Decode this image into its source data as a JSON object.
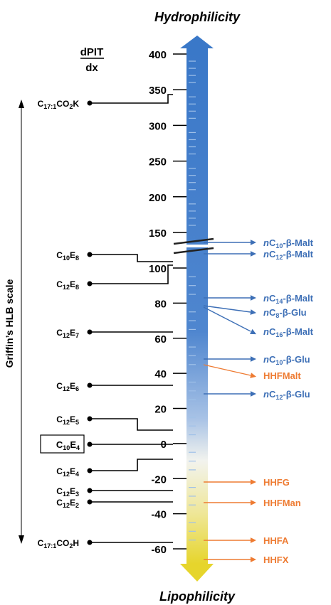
{
  "title_top": "Hydrophilicity",
  "title_bottom": "Lipophilicity",
  "axis_label_num": "dPIT",
  "axis_label_den": "dx",
  "hlb_label": "Griffin’s HLB scale",
  "colors": {
    "blue_label": "#3d6fb6",
    "orange_label": "#ee7b32",
    "bar_top": "#3a78c8",
    "bar_mid": "#7fa6d6",
    "bar_white": "#f2f3ee",
    "bar_yellow": "#e8d834"
  },
  "ticks": [
    {
      "v": 400,
      "label": "400"
    },
    {
      "v": 350,
      "label": "350"
    },
    {
      "v": 300,
      "label": "300"
    },
    {
      "v": 250,
      "label": "250"
    },
    {
      "v": 200,
      "label": "200"
    },
    {
      "v": 150,
      "label": "150"
    },
    {
      "v": 100,
      "label": "100"
    },
    {
      "v": 80,
      "label": "80"
    },
    {
      "v": 60,
      "label": "60"
    },
    {
      "v": 40,
      "label": "40"
    },
    {
      "v": 20,
      "label": "20"
    },
    {
      "v": 0,
      "label": "0"
    },
    {
      "v": -20,
      "label": "-20"
    },
    {
      "v": -40,
      "label": "-40"
    },
    {
      "v": -60,
      "label": "-60"
    }
  ],
  "left_labels": [
    {
      "main": "C",
      "sub": "17:1",
      "rest": "CO",
      "sub2": "2",
      "rest2": "K",
      "value": 340
    },
    {
      "main": "C",
      "sub": "10",
      "rest": "E",
      "sub2": "8",
      "rest2": "",
      "value": 104
    },
    {
      "main": "C",
      "sub": "12",
      "rest": "E",
      "sub2": "8",
      "rest2": "",
      "value": 102
    },
    {
      "main": "C",
      "sub": "12",
      "rest": "E",
      "sub2": "7",
      "rest2": "",
      "value": 63
    },
    {
      "main": "C",
      "sub": "12",
      "rest": "E",
      "sub2": "6",
      "rest2": "",
      "value": 37
    },
    {
      "main": "C",
      "sub": "12",
      "rest": "E",
      "sub2": "5",
      "rest2": "",
      "value": 8
    },
    {
      "main": "C",
      "sub": "10",
      "rest": "E",
      "sub2": "4",
      "rest2": "",
      "value": 0
    },
    {
      "main": "C",
      "sub": "12",
      "rest": "E",
      "sub2": "4",
      "rest2": "",
      "value": -8
    },
    {
      "main": "C",
      "sub": "12",
      "rest": "E",
      "sub2": "3",
      "rest2": "",
      "value": -27
    },
    {
      "main": "C",
      "sub": "12",
      "rest": "E",
      "sub2": "2",
      "rest2": "",
      "value": -31
    },
    {
      "main": "C",
      "sub": "17:1",
      "rest": "CO",
      "sub2": "2",
      "rest2": "H",
      "value": -56
    }
  ],
  "right_labels": [
    {
      "prefix": "n",
      "main": "C",
      "sub": "10",
      "rest": "-β-Malt",
      "group": "blue"
    },
    {
      "prefix": "n",
      "main": "C",
      "sub": "12",
      "rest": "-β-Malt",
      "group": "blue"
    },
    {
      "prefix": "n",
      "main": "C",
      "sub": "14",
      "rest": "-β-Malt",
      "group": "blue"
    },
    {
      "prefix": "n",
      "main": "C",
      "sub": "8",
      "rest": "-β-Glu",
      "group": "blue"
    },
    {
      "prefix": "n",
      "main": "C",
      "sub": "16",
      "rest": "-β-Malt",
      "group": "blue"
    },
    {
      "prefix": "n",
      "main": "C",
      "sub": "10",
      "rest": "-β-Glu",
      "group": "blue"
    },
    {
      "prefix": "",
      "main": "HHFMalt",
      "sub": "",
      "rest": "",
      "group": "orange"
    },
    {
      "prefix": "n",
      "main": "C",
      "sub": "12",
      "rest": "-β-Glu",
      "group": "blue"
    },
    {
      "prefix": "",
      "main": "HHFG",
      "sub": "",
      "rest": "",
      "group": "orange"
    },
    {
      "prefix": "",
      "main": "HHFMan",
      "sub": "",
      "rest": "",
      "group": "orange"
    },
    {
      "prefix": "",
      "main": "HHFA",
      "sub": "",
      "rest": "",
      "group": "orange"
    },
    {
      "prefix": "",
      "main": "HHFX",
      "sub": "",
      "rest": "",
      "group": "orange"
    }
  ]
}
